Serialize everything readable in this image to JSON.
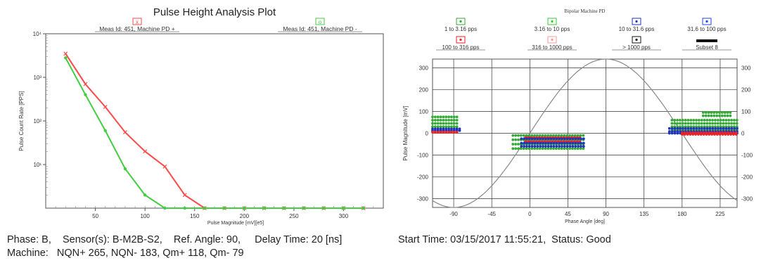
{
  "chart_data": [
    {
      "type": "line",
      "title": "Pulse Height Analysis Plot",
      "xlabel": "Pulse Magnitude [mV][e5]",
      "ylabel": "Pulse Count Rate [PPS]",
      "y_scale": "log",
      "xlim": [
        0,
        340
      ],
      "ylim": [
        1,
        10000
      ],
      "x_ticks": [
        50,
        100,
        150,
        200,
        250,
        300
      ],
      "x_tick_labels": [
        "50",
        "100",
        "150",
        "200",
        "250",
        "300"
      ],
      "y_tick_labels": [
        "10¹",
        "10²",
        "10³",
        "10⁴"
      ],
      "y_tick_values": [
        10,
        100,
        1000,
        10000
      ],
      "legend_placement": "top",
      "grid": false,
      "series": [
        {
          "name": "Meas Id: 451, Machine PD +",
          "color": "#ff4a4a",
          "marker": "x",
          "x": [
            20,
            40,
            60,
            80,
            100,
            120,
            140,
            160,
            180,
            200,
            220,
            240,
            260,
            280,
            300,
            320
          ],
          "y": [
            3500,
            700,
            210,
            55,
            20,
            9,
            2,
            1,
            1,
            1,
            1,
            1,
            1,
            1,
            1,
            1
          ]
        },
        {
          "name": "Meas Id: 451, Machine PD -",
          "color": "#44cc44",
          "marker": "o",
          "x": [
            20,
            40,
            60,
            80,
            100,
            120,
            140,
            160,
            180,
            200,
            220,
            240,
            260,
            280,
            300,
            320
          ],
          "y": [
            2800,
            400,
            60,
            8,
            2,
            1,
            1,
            1,
            1,
            1,
            1,
            1,
            1,
            1,
            1,
            1
          ]
        }
      ]
    },
    {
      "type": "scatter",
      "title": "Bipolar Machine PD",
      "xlabel": "Phase Angle [deg]",
      "ylabel": "Pulse Magnitude [mV]",
      "xlim": [
        -115,
        245
      ],
      "ylim": [
        -340,
        340
      ],
      "x_ticks": [
        -90,
        -45,
        0,
        45,
        90,
        135,
        180,
        225
      ],
      "x_tick_labels": [
        "-90",
        "-45",
        "0",
        "45",
        "90",
        "135",
        "180",
        "225"
      ],
      "y_ticks": [
        -300,
        -200,
        -100,
        0,
        100,
        200,
        300
      ],
      "y_tick_labels_left": [
        "-300",
        "-200",
        "-100",
        "0",
        "100",
        "200",
        "300"
      ],
      "y_tick_labels_right": [
        "-300",
        "-200",
        "-100",
        "0",
        "100",
        "200",
        "300"
      ],
      "grid": true,
      "legend_placement": "top",
      "legend": [
        {
          "label": "1 to 3.16 pps",
          "color": "#33aa33"
        },
        {
          "label": "3.16 to 10 pps",
          "color": "#33cc33"
        },
        {
          "label": "10 to 31.6 pps",
          "color": "#2233bb"
        },
        {
          "label": "31.6 to 100 pps",
          "color": "#2244ee"
        },
        {
          "label": "100 to 316 pps",
          "color": "#ee2222"
        },
        {
          "label": "316 to 1000 pps",
          "color": "#ff9999"
        },
        {
          "label": "> 1000 pps",
          "color": "#111111"
        },
        {
          "label": "Subset 8",
          "color": "#111111"
        }
      ],
      "reference_sine": {
        "amplitude": 340,
        "period_deg": 360,
        "phase_offset_deg": 0,
        "color": "#888888"
      },
      "clusters": [
        {
          "name": "neg-half-left-green",
          "color": "#33aa33",
          "x_range": [
            -115,
            -85
          ],
          "y_values": [
            75,
            60,
            45,
            30
          ]
        },
        {
          "name": "neg-half-left-blue",
          "color": "#2233bb",
          "x_range": [
            -115,
            -80
          ],
          "y_values": [
            20,
            12
          ]
        },
        {
          "name": "neg-half-left-red",
          "color": "#ee2222",
          "x_range": [
            -115,
            -85
          ],
          "y_values": [
            5
          ]
        },
        {
          "name": "center-green",
          "color": "#33aa33",
          "x_range": [
            -20,
            65
          ],
          "y_values": [
            -10,
            -30,
            -50,
            -70
          ]
        },
        {
          "name": "center-red",
          "color": "#ee2222",
          "x_range": [
            -5,
            60
          ],
          "y_values": [
            -20,
            -38
          ]
        },
        {
          "name": "center-blue",
          "color": "#2233bb",
          "x_range": [
            -10,
            65
          ],
          "y_values": [
            -25,
            -45,
            -60
          ]
        },
        {
          "name": "pos-half-right-green",
          "color": "#33aa33",
          "x_range": [
            168,
            245
          ],
          "y_values": [
            60,
            45,
            30,
            15
          ]
        },
        {
          "name": "pos-half-right-blue",
          "color": "#2233bb",
          "x_range": [
            165,
            245
          ],
          "y_values": [
            22,
            8,
            0
          ]
        },
        {
          "name": "pos-half-right-red",
          "color": "#ee2222",
          "x_range": [
            180,
            245
          ],
          "y_values": [
            2,
            -5
          ]
        },
        {
          "name": "pos-half-right-top",
          "color": "#33aa33",
          "x_range": [
            205,
            240
          ],
          "y_values": [
            95,
            80
          ]
        }
      ]
    }
  ],
  "info_left": {
    "line1": "Phase: B,    Sensor(s): B-M2B-S2,    Ref. Angle: 90,     Delay Time: 20 [ns]",
    "line2": "Machine:   NQN+ 265, NQN- 183, Qm+ 118, Qm- 79"
  },
  "info_right": {
    "line1": "Start Time: 03/15/2017 11:55:21,  Status: Good"
  }
}
